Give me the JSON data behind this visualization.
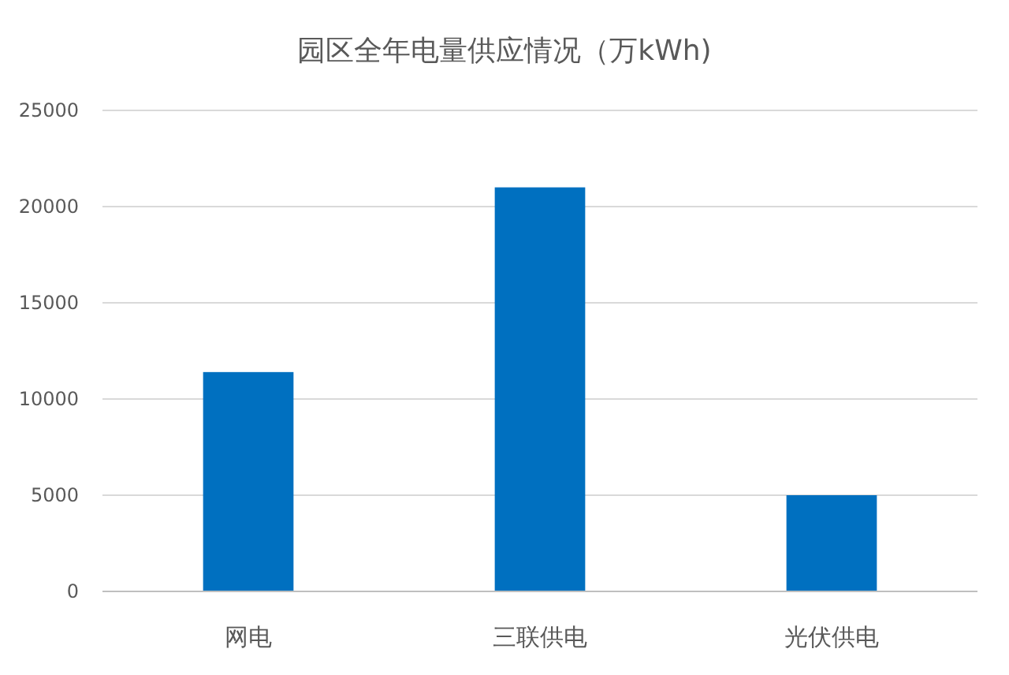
{
  "chart_data": {
    "type": "bar",
    "title": "园区全年电量供应情况（万kWh)",
    "categories": [
      "网电",
      "三联供电",
      "光伏供电"
    ],
    "values": [
      11400,
      21000,
      5000
    ],
    "color": "#0070c0",
    "ylim": [
      0,
      25000
    ],
    "yticks": [
      0,
      5000,
      10000,
      15000,
      20000,
      25000
    ],
    "grid": "y"
  }
}
